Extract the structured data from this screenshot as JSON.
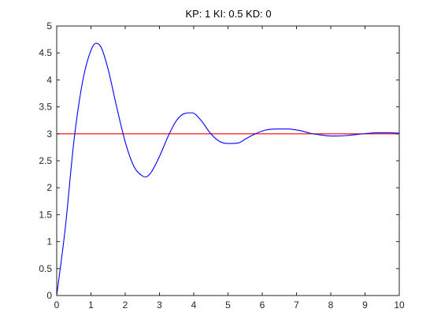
{
  "chart_data": {
    "type": "line",
    "title": "KP: 1 KI: 0.5 KD: 0",
    "xlabel": "",
    "ylabel": "",
    "xlim": [
      0,
      10
    ],
    "ylim": [
      0,
      5
    ],
    "xticks": [
      0,
      1,
      2,
      3,
      4,
      5,
      6,
      7,
      8,
      9,
      10
    ],
    "yticks": [
      0,
      0.5,
      1,
      1.5,
      2,
      2.5,
      3,
      3.5,
      4,
      4.5,
      5
    ],
    "xtick_labels": [
      "0",
      "1",
      "2",
      "3",
      "4",
      "5",
      "6",
      "7",
      "8",
      "9",
      "10"
    ],
    "ytick_labels": [
      "0",
      "0.5",
      "1",
      "1.5",
      "2",
      "2.5",
      "3",
      "3.5",
      "4",
      "4.5",
      "5"
    ],
    "grid": false,
    "series": [
      {
        "color": "#0000ff",
        "x": [
          0,
          0.25,
          0.5,
          0.75,
          1.0,
          1.15,
          1.3,
          1.5,
          1.75,
          2.0,
          2.25,
          2.5,
          2.6,
          2.75,
          3.0,
          3.25,
          3.5,
          3.75,
          3.95,
          4.2,
          4.5,
          4.75,
          5.0,
          5.3,
          5.5,
          5.8,
          6.1,
          6.4,
          6.75,
          7.1,
          7.4,
          7.7,
          8.0,
          8.2,
          8.5,
          8.8,
          9.1,
          9.4,
          9.7,
          10.0
        ],
        "values": [
          0,
          1.25,
          2.85,
          3.95,
          4.55,
          4.68,
          4.6,
          4.2,
          3.5,
          2.85,
          2.4,
          2.22,
          2.2,
          2.28,
          2.58,
          2.95,
          3.25,
          3.38,
          3.39,
          3.26,
          3.0,
          2.86,
          2.82,
          2.83,
          2.9,
          3.0,
          3.07,
          3.09,
          3.09,
          3.06,
          3.01,
          2.98,
          2.96,
          2.96,
          2.97,
          2.99,
          3.01,
          3.02,
          3.02,
          3.01
        ]
      },
      {
        "color": "#ff0000",
        "x": [
          0,
          10
        ],
        "values": [
          3,
          3
        ]
      }
    ]
  }
}
